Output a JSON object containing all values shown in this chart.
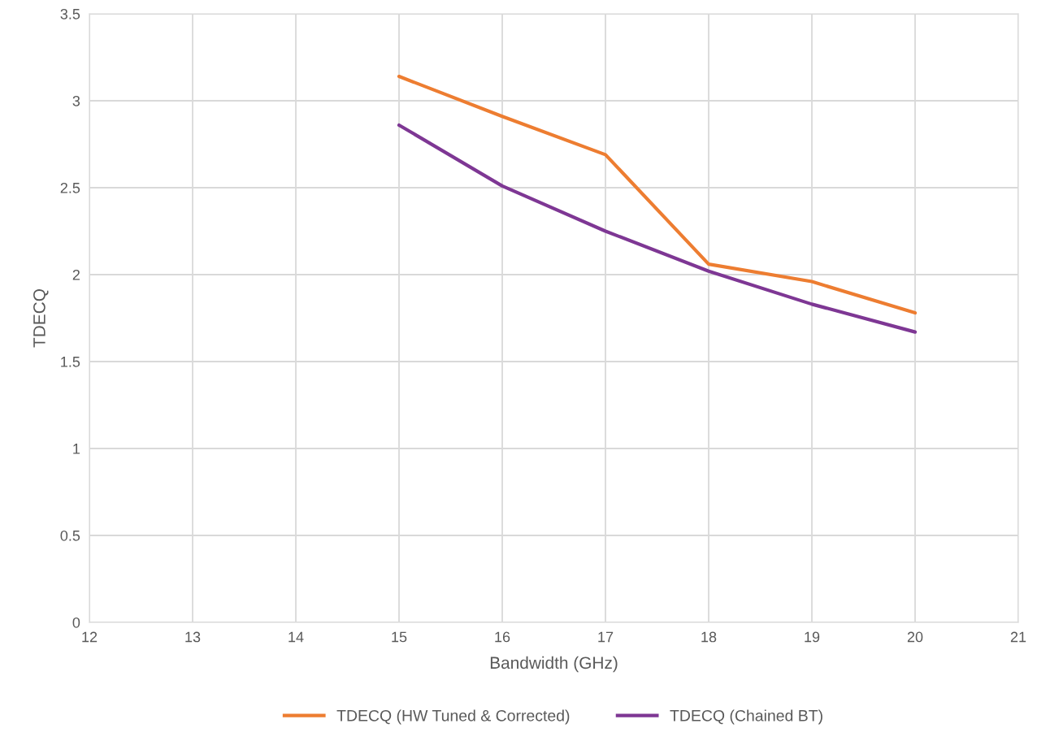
{
  "chart_data": {
    "type": "line",
    "xlabel": "Bandwidth (GHz)",
    "ylabel": "TDECQ",
    "x": [
      15,
      16,
      17,
      18,
      19,
      20
    ],
    "series": [
      {
        "name": "TDECQ (HW Tuned & Corrected)",
        "color": "#ed7d31",
        "values": [
          3.14,
          2.91,
          2.69,
          2.06,
          1.96,
          1.78
        ]
      },
      {
        "name": "TDECQ (Chained BT)",
        "color": "#7e3794",
        "values": [
          2.86,
          2.51,
          2.25,
          2.02,
          1.83,
          1.67
        ]
      }
    ],
    "xlim": [
      12,
      21
    ],
    "xticks": [
      12,
      13,
      14,
      15,
      16,
      17,
      18,
      19,
      20,
      21
    ],
    "ylim": [
      0,
      3.5
    ],
    "yticks": [
      0,
      0.5,
      1,
      1.5,
      2,
      2.5,
      3,
      3.5
    ],
    "grid": true,
    "legend": "bottom",
    "marker": "none",
    "line_style": "solid"
  }
}
